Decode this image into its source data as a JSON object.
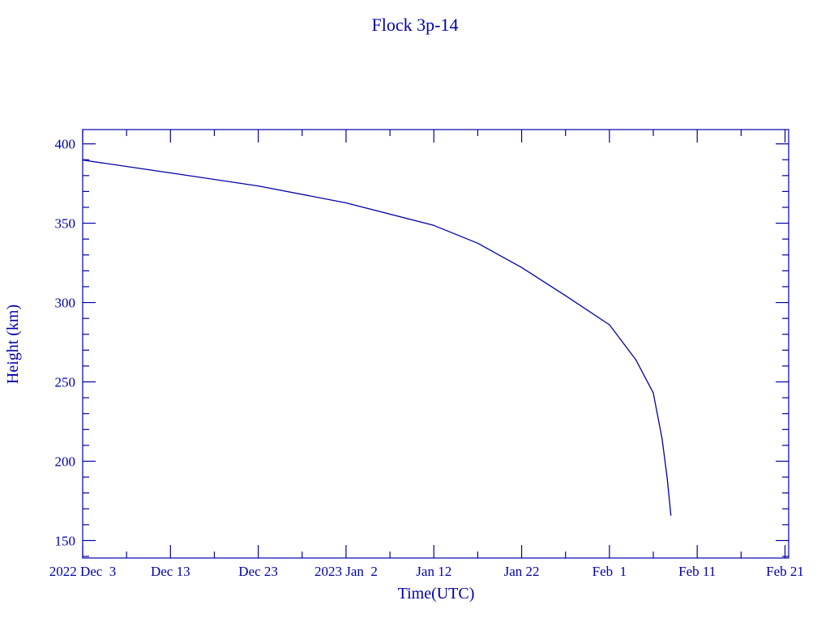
{
  "chart_data": {
    "type": "line",
    "title": "Flock 3p-14",
    "xlabel": "Time(UTC)",
    "ylabel": "Height (km)",
    "color": "#0000a8",
    "xlim": [
      "2022-12-03T00:00:00Z",
      "2023-02-21T10:00:00Z"
    ],
    "ylim": [
      139,
      409
    ],
    "grid": false,
    "x_ticks": [
      {
        "date": "2022-12-03T00:00:00Z",
        "label": "2022 Dec  3"
      },
      {
        "date": "2022-12-13T00:00:00Z",
        "label": "Dec 13"
      },
      {
        "date": "2022-12-23T00:00:00Z",
        "label": "Dec 23"
      },
      {
        "date": "2023-01-02T00:00:00Z",
        "label": "2023 Jan  2"
      },
      {
        "date": "2023-01-12T00:00:00Z",
        "label": "Jan 12"
      },
      {
        "date": "2023-01-22T00:00:00Z",
        "label": "Jan 22"
      },
      {
        "date": "2023-02-01T00:00:00Z",
        "label": "Feb  1"
      },
      {
        "date": "2023-02-11T00:00:00Z",
        "label": "Feb 11"
      },
      {
        "date": "2023-02-21T00:00:00Z",
        "label": "Feb 21"
      }
    ],
    "y_ticks": [
      150,
      200,
      250,
      300,
      350,
      400
    ],
    "series": [
      {
        "x": [
          "2022-12-03T00:00:00Z",
          "2022-12-13T00:00:00Z",
          "2022-12-23T00:00:00Z",
          "2023-01-02T00:00:00Z",
          "2023-01-12T00:00:00Z",
          "2023-01-17T00:00:00Z",
          "2023-01-22T00:00:00Z",
          "2023-01-27T00:00:00Z",
          "2023-02-01T00:00:00Z",
          "2023-02-04T00:00:00Z",
          "2023-02-06T00:00:00Z",
          "2023-02-07T00:00:00Z",
          "2023-02-07T14:00:00Z",
          "2023-02-08T00:00:00Z"
        ],
        "y": [
          389.8,
          381.7,
          373.5,
          362.8,
          348.6,
          337.4,
          322.1,
          304.3,
          286.0,
          264.0,
          243.0,
          214.0,
          189.0,
          166.0
        ]
      }
    ]
  }
}
